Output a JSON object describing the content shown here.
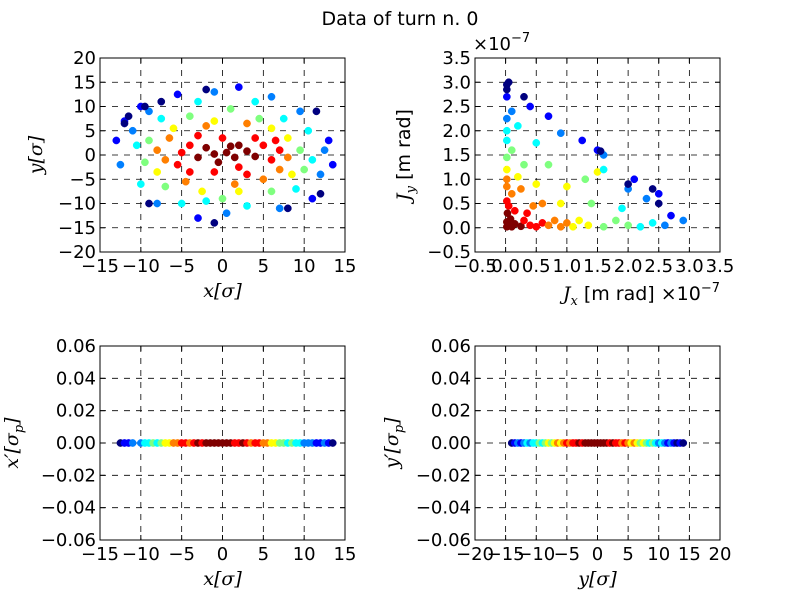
{
  "figure": {
    "title": "Data of turn n.  0"
  },
  "colormap": [
    "#00007f",
    "#0000ff",
    "#007fff",
    "#00ffff",
    "#7fff7f",
    "#ffff00",
    "#ff7f00",
    "#ff0000",
    "#7f0000"
  ],
  "chart_data": [
    {
      "type": "scatter",
      "id": "xy",
      "xlabel": "x[σ]",
      "ylabel": "y[σ]",
      "xlim": [
        -15,
        15
      ],
      "ylim": [
        -20,
        20
      ],
      "xticks": [
        -15,
        -10,
        -5,
        0,
        5,
        10,
        15
      ],
      "yticks": [
        -20,
        -15,
        -10,
        -5,
        0,
        5,
        10,
        15,
        20
      ],
      "xticklabels": [
        "−15",
        "−10",
        "−5",
        "0",
        "5",
        "10",
        "15"
      ],
      "yticklabels": [
        "−20",
        "−15",
        "−10",
        "−5",
        "0",
        "5",
        "10",
        "15",
        "20"
      ],
      "grid": true,
      "description_of_colors": "jet colormap, dark red at core, dark blue at outer ring",
      "points": [
        {
          "x": 0.5,
          "y": 0.5,
          "c": 8
        },
        {
          "x": -1,
          "y": 0.2,
          "c": 8
        },
        {
          "x": 1.5,
          "y": -0.5,
          "c": 8
        },
        {
          "x": -2,
          "y": 1.5,
          "c": 8
        },
        {
          "x": 3,
          "y": 0.8,
          "c": 8
        },
        {
          "x": 2,
          "y": 2,
          "c": 8
        },
        {
          "x": -0.5,
          "y": -1.5,
          "c": 8
        },
        {
          "x": 4,
          "y": -0.3,
          "c": 8
        },
        {
          "x": -3,
          "y": -0.5,
          "c": 8
        },
        {
          "x": 1,
          "y": 1.8,
          "c": 8
        },
        {
          "x": -4,
          "y": 2,
          "c": 7
        },
        {
          "x": 5,
          "y": 2,
          "c": 7
        },
        {
          "x": -5,
          "y": 0.5,
          "c": 7
        },
        {
          "x": 6,
          "y": -1,
          "c": 7
        },
        {
          "x": -5.5,
          "y": -2,
          "c": 7
        },
        {
          "x": 2,
          "y": -2.5,
          "c": 7
        },
        {
          "x": 0,
          "y": 3.5,
          "c": 7
        },
        {
          "x": -1,
          "y": -3.5,
          "c": 7
        },
        {
          "x": 4,
          "y": 3.5,
          "c": 7
        },
        {
          "x": -3,
          "y": 4,
          "c": 7
        },
        {
          "x": 3,
          "y": -4,
          "c": 7
        },
        {
          "x": -4,
          "y": -3.5,
          "c": 7
        },
        {
          "x": 7,
          "y": 1,
          "c": 7
        },
        {
          "x": 6.5,
          "y": 3,
          "c": 7
        },
        {
          "x": -6.5,
          "y": 3.5,
          "c": 6
        },
        {
          "x": 7,
          "y": -3,
          "c": 6
        },
        {
          "x": -7,
          "y": -1,
          "c": 6
        },
        {
          "x": 5,
          "y": -5,
          "c": 6
        },
        {
          "x": -2,
          "y": 6,
          "c": 6
        },
        {
          "x": 1.5,
          "y": -6,
          "c": 6
        },
        {
          "x": 3,
          "y": 6.5,
          "c": 6
        },
        {
          "x": -4.5,
          "y": -5.5,
          "c": 6
        },
        {
          "x": 8,
          "y": -0.5,
          "c": 6
        },
        {
          "x": -8,
          "y": 1,
          "c": 6
        },
        {
          "x": -1,
          "y": 7,
          "c": 5
        },
        {
          "x": 6,
          "y": 5.5,
          "c": 5
        },
        {
          "x": -6,
          "y": 5.5,
          "c": 5
        },
        {
          "x": 8,
          "y": 3.5,
          "c": 5
        },
        {
          "x": -8,
          "y": -3.5,
          "c": 5
        },
        {
          "x": 2,
          "y": -7.5,
          "c": 5
        },
        {
          "x": -2.5,
          "y": -7.5,
          "c": 5
        },
        {
          "x": 8.5,
          "y": -4,
          "c": 5
        },
        {
          "x": 4.5,
          "y": 7.5,
          "c": 4
        },
        {
          "x": -4,
          "y": 8,
          "c": 4
        },
        {
          "x": -9,
          "y": 3,
          "c": 4
        },
        {
          "x": 9.5,
          "y": 1,
          "c": 4
        },
        {
          "x": 6,
          "y": -7.5,
          "c": 4
        },
        {
          "x": -7,
          "y": -6.5,
          "c": 4
        },
        {
          "x": 0,
          "y": -9,
          "c": 4
        },
        {
          "x": 1,
          "y": 9.5,
          "c": 4
        },
        {
          "x": -9.5,
          "y": -1.5,
          "c": 4
        },
        {
          "x": 10,
          "y": -3,
          "c": 4
        },
        {
          "x": -2,
          "y": -9.5,
          "c": 3
        },
        {
          "x": 7.5,
          "y": 7.5,
          "c": 3
        },
        {
          "x": -7.5,
          "y": 7.5,
          "c": 3
        },
        {
          "x": 9,
          "y": -7,
          "c": 3
        },
        {
          "x": -10.5,
          "y": 2,
          "c": 3
        },
        {
          "x": 11,
          "y": -1,
          "c": 3
        },
        {
          "x": 3,
          "y": -10.5,
          "c": 3
        },
        {
          "x": -5,
          "y": -10,
          "c": 3
        },
        {
          "x": -3,
          "y": 11,
          "c": 3
        },
        {
          "x": 4,
          "y": 11,
          "c": 3
        },
        {
          "x": -10,
          "y": -6,
          "c": 3
        },
        {
          "x": 10.5,
          "y": 5,
          "c": 3
        },
        {
          "x": -11,
          "y": 5,
          "c": 2
        },
        {
          "x": 12,
          "y": -4,
          "c": 2
        },
        {
          "x": -9,
          "y": 9,
          "c": 2
        },
        {
          "x": 9.5,
          "y": 9,
          "c": 2
        },
        {
          "x": -8,
          "y": -10,
          "c": 2
        },
        {
          "x": 7,
          "y": -11,
          "c": 2
        },
        {
          "x": 0.5,
          "y": -12,
          "c": 2
        },
        {
          "x": -1,
          "y": 13,
          "c": 2
        },
        {
          "x": 12.5,
          "y": 1,
          "c": 2
        },
        {
          "x": -12.5,
          "y": -2,
          "c": 2
        },
        {
          "x": 6,
          "y": 12,
          "c": 2
        },
        {
          "x": -5.5,
          "y": 12.5,
          "c": 1
        },
        {
          "x": 13,
          "y": 3,
          "c": 1
        },
        {
          "x": -12,
          "y": 7,
          "c": 1
        },
        {
          "x": 11,
          "y": -9,
          "c": 1
        },
        {
          "x": -10,
          "y": 10,
          "c": 1
        },
        {
          "x": -3,
          "y": -13,
          "c": 1
        },
        {
          "x": 2,
          "y": 14,
          "c": 1
        },
        {
          "x": 13.5,
          "y": -2,
          "c": 1
        },
        {
          "x": -13,
          "y": 3,
          "c": 1
        },
        {
          "x": -11.5,
          "y": 8,
          "c": 0
        },
        {
          "x": -12,
          "y": 6.5,
          "c": 0
        },
        {
          "x": -9.5,
          "y": 10,
          "c": 0
        },
        {
          "x": -7.5,
          "y": 11,
          "c": 0
        },
        {
          "x": -2,
          "y": 13.5,
          "c": 0
        },
        {
          "x": 12,
          "y": -8,
          "c": 0
        },
        {
          "x": 8,
          "y": -11,
          "c": 0
        },
        {
          "x": -1,
          "y": -14,
          "c": 0
        },
        {
          "x": 11.5,
          "y": 9,
          "c": 0
        },
        {
          "x": -9,
          "y": -10,
          "c": 0
        }
      ]
    },
    {
      "type": "scatter",
      "id": "JxJy",
      "xlabel_var": "J",
      "xlabel_sub": "x",
      "xlabel_unit": " [m rad]",
      "ylabel_var": "J",
      "ylabel_sub": "y",
      "ylabel_unit": " [m rad]",
      "x_offset_text": "×10",
      "x_offset_exp": "−7",
      "y_offset_text": "×10",
      "y_offset_exp": "−7",
      "xlim": [
        -0.5,
        3.5
      ],
      "ylim": [
        -0.5,
        3.5
      ],
      "xticks": [
        -0.5,
        0.0,
        0.5,
        1.0,
        1.5,
        2.0,
        2.5,
        3.0,
        3.5
      ],
      "yticks": [
        -0.5,
        0.0,
        0.5,
        1.0,
        1.5,
        2.0,
        2.5,
        3.0,
        3.5
      ],
      "xticklabels": [
        "−0.5",
        "0.0",
        "0.5",
        "1.0",
        "1.5",
        "2.0",
        "2.5",
        "3.0",
        "3.5"
      ],
      "yticklabels": [
        "−0.5",
        "0.0",
        "0.5",
        "1.0",
        "1.5",
        "2.0",
        "2.5",
        "3.0",
        "3.5"
      ],
      "grid": true,
      "points": [
        {
          "x": 0.02,
          "y": 0.02,
          "c": 8
        },
        {
          "x": 0.05,
          "y": 0.05,
          "c": 8
        },
        {
          "x": 0.1,
          "y": 0.02,
          "c": 8
        },
        {
          "x": 0.02,
          "y": 0.12,
          "c": 8
        },
        {
          "x": 0.15,
          "y": 0.08,
          "c": 8
        },
        {
          "x": 0.08,
          "y": 0.18,
          "c": 8
        },
        {
          "x": 0.25,
          "y": 0.03,
          "c": 8
        },
        {
          "x": 0.03,
          "y": 0.3,
          "c": 8
        },
        {
          "x": 0.3,
          "y": 0.15,
          "c": 7
        },
        {
          "x": 0.15,
          "y": 0.35,
          "c": 7
        },
        {
          "x": 0.4,
          "y": 0.05,
          "c": 7
        },
        {
          "x": 0.05,
          "y": 0.45,
          "c": 7
        },
        {
          "x": 0.5,
          "y": 0.02,
          "c": 7
        },
        {
          "x": 0.02,
          "y": 0.55,
          "c": 7
        },
        {
          "x": 0.35,
          "y": 0.3,
          "c": 7
        },
        {
          "x": 0.6,
          "y": 0.1,
          "c": 7
        },
        {
          "x": 0.7,
          "y": 0.05,
          "c": 6
        },
        {
          "x": 0.1,
          "y": 0.7,
          "c": 6
        },
        {
          "x": 0.45,
          "y": 0.45,
          "c": 6
        },
        {
          "x": 0.8,
          "y": 0.15,
          "c": 6
        },
        {
          "x": 0.02,
          "y": 0.85,
          "c": 6
        },
        {
          "x": 0.9,
          "y": 0.02,
          "c": 6
        },
        {
          "x": 0.25,
          "y": 0.8,
          "c": 6
        },
        {
          "x": 1.0,
          "y": 0.1,
          "c": 6
        },
        {
          "x": 0.6,
          "y": 0.5,
          "c": 6
        },
        {
          "x": 0.02,
          "y": 1.0,
          "c": 6
        },
        {
          "x": 1.1,
          "y": 0.02,
          "c": 5
        },
        {
          "x": 0.2,
          "y": 1.05,
          "c": 5
        },
        {
          "x": 0.9,
          "y": 0.5,
          "c": 5
        },
        {
          "x": 1.2,
          "y": 0.15,
          "c": 5
        },
        {
          "x": 0.5,
          "y": 0.9,
          "c": 5
        },
        {
          "x": 0.02,
          "y": 1.2,
          "c": 5
        },
        {
          "x": 1.35,
          "y": 0.05,
          "c": 5
        },
        {
          "x": 1.5,
          "y": 1.15,
          "c": 5
        },
        {
          "x": 1.0,
          "y": 0.85,
          "c": 5
        },
        {
          "x": 0.3,
          "y": 1.3,
          "c": 4
        },
        {
          "x": 1.4,
          "y": 0.5,
          "c": 4
        },
        {
          "x": 1.6,
          "y": 0.02,
          "c": 4
        },
        {
          "x": 0.02,
          "y": 1.45,
          "c": 4
        },
        {
          "x": 0.7,
          "y": 1.3,
          "c": 4
        },
        {
          "x": 1.8,
          "y": 0.15,
          "c": 4
        },
        {
          "x": 0.1,
          "y": 1.6,
          "c": 4
        },
        {
          "x": 1.3,
          "y": 1.0,
          "c": 4
        },
        {
          "x": 2.0,
          "y": 0.05,
          "c": 4
        },
        {
          "x": 0.02,
          "y": 1.8,
          "c": 3
        },
        {
          "x": 1.9,
          "y": 0.4,
          "c": 3
        },
        {
          "x": 0.5,
          "y": 1.75,
          "c": 3
        },
        {
          "x": 2.2,
          "y": 0.02,
          "c": 3
        },
        {
          "x": 1.6,
          "y": 1.2,
          "c": 3
        },
        {
          "x": 0.02,
          "y": 2.0,
          "c": 3
        },
        {
          "x": 2.4,
          "y": 0.1,
          "c": 3
        },
        {
          "x": 0.2,
          "y": 2.1,
          "c": 3
        },
        {
          "x": 2.0,
          "y": 0.8,
          "c": 2
        },
        {
          "x": 0.02,
          "y": 2.25,
          "c": 2
        },
        {
          "x": 2.6,
          "y": 0.05,
          "c": 2
        },
        {
          "x": 0.9,
          "y": 1.95,
          "c": 2
        },
        {
          "x": 0.1,
          "y": 2.4,
          "c": 2
        },
        {
          "x": 2.3,
          "y": 0.6,
          "c": 2
        },
        {
          "x": 2.9,
          "y": 0.15,
          "c": 2
        },
        {
          "x": 1.6,
          "y": 1.5,
          "c": 2
        },
        {
          "x": 0.4,
          "y": 2.5,
          "c": 1
        },
        {
          "x": 2.7,
          "y": 0.25,
          "c": 1
        },
        {
          "x": 0.02,
          "y": 2.7,
          "c": 1
        },
        {
          "x": 2.5,
          "y": 0.7,
          "c": 1
        },
        {
          "x": 1.5,
          "y": 1.6,
          "c": 1
        },
        {
          "x": 0.7,
          "y": 2.3,
          "c": 1
        },
        {
          "x": 1.25,
          "y": 1.8,
          "c": 1
        },
        {
          "x": 2.1,
          "y": 1.0,
          "c": 1
        },
        {
          "x": 0.02,
          "y": 2.95,
          "c": 0
        },
        {
          "x": 0.05,
          "y": 3.0,
          "c": 0
        },
        {
          "x": 0.02,
          "y": 2.85,
          "c": 0
        },
        {
          "x": 0.3,
          "y": 2.7,
          "c": 0
        },
        {
          "x": 2.0,
          "y": 0.9,
          "c": 0
        },
        {
          "x": 2.5,
          "y": 0.5,
          "c": 0
        },
        {
          "x": 1.55,
          "y": 1.58,
          "c": 0
        },
        {
          "x": 2.4,
          "y": 0.8,
          "c": 0
        }
      ]
    },
    {
      "type": "scatter",
      "id": "xxp",
      "xlabel": "x[σ]",
      "ylabel_main": "x′[σ",
      "ylabel_sub": "p",
      "ylabel_close": "]",
      "xlim": [
        -15,
        15
      ],
      "ylim": [
        -0.06,
        0.06
      ],
      "xticks": [
        -15,
        -10,
        -5,
        0,
        5,
        10,
        15
      ],
      "yticks": [
        -0.06,
        -0.04,
        -0.02,
        0.0,
        0.02,
        0.04,
        0.06
      ],
      "xticklabels": [
        "−15",
        "−10",
        "−5",
        "0",
        "5",
        "10",
        "15"
      ],
      "yticklabels": [
        "−0.06",
        "−0.04",
        "−0.02",
        "0.00",
        "0.02",
        "0.04",
        "0.06"
      ],
      "grid": true,
      "y_constant": 0.0,
      "points_x": [
        -12.5,
        -12,
        -11.5,
        -11,
        -10,
        -9.5,
        -9,
        -8.5,
        -8,
        -7.5,
        -7,
        -6.5,
        -6,
        -5.5,
        -5,
        -4.5,
        -4,
        -3.5,
        -3,
        -2.5,
        -2,
        -1.5,
        -1,
        -0.5,
        0,
        0.5,
        1,
        1.5,
        2,
        2.5,
        3,
        3.5,
        4,
        4.5,
        5,
        5.5,
        6,
        6.5,
        7,
        7.5,
        8,
        8.5,
        9,
        9.5,
        10,
        10.5,
        11,
        11.5,
        12,
        12.5,
        13,
        13.5
      ],
      "points_c": [
        0,
        1,
        1,
        2,
        2,
        3,
        3,
        4,
        3,
        4,
        5,
        5,
        6,
        6,
        7,
        7,
        6,
        7,
        8,
        7,
        8,
        8,
        8,
        8,
        8,
        8,
        8,
        7,
        7,
        8,
        7,
        6,
        7,
        7,
        6,
        6,
        5,
        5,
        4,
        4,
        3,
        4,
        3,
        3,
        2,
        2,
        2,
        1,
        1,
        2,
        1,
        0
      ]
    },
    {
      "type": "scatter",
      "id": "yyp",
      "xlabel": "y[σ]",
      "ylabel_main": "y′[σ",
      "ylabel_sub": "p",
      "ylabel_close": "]",
      "xlim": [
        -20,
        20
      ],
      "ylim": [
        -0.06,
        0.06
      ],
      "xticks": [
        -20,
        -15,
        -10,
        -5,
        0,
        5,
        10,
        15,
        20
      ],
      "yticks": [
        -0.06,
        -0.04,
        -0.02,
        0.0,
        0.02,
        0.04,
        0.06
      ],
      "xticklabels": [
        "−20",
        "−15",
        "−10",
        "−5",
        "0",
        "5",
        "10",
        "15",
        "20"
      ],
      "yticklabels": [
        "−0.06",
        "−0.04",
        "−0.02",
        "0.00",
        "0.02",
        "0.04",
        "0.06"
      ],
      "grid": true,
      "y_constant": 0.0,
      "points_x": [
        -14,
        -13.5,
        -13,
        -12.5,
        -12,
        -11.5,
        -11,
        -10.5,
        -10,
        -9.5,
        -9,
        -8.5,
        -8,
        -7.5,
        -7,
        -6.5,
        -6,
        -5.5,
        -5,
        -4.5,
        -4,
        -3.5,
        -3,
        -2.5,
        -2,
        -1.5,
        -1,
        -0.5,
        0,
        0.5,
        1,
        1.5,
        2,
        2.5,
        3,
        3.5,
        4,
        4.5,
        5,
        5.5,
        6,
        6.5,
        7,
        7.5,
        8,
        8.5,
        9,
        9.5,
        10,
        10.5,
        11,
        11.5,
        12,
        12.5,
        13,
        13.5,
        14
      ],
      "points_c": [
        0,
        1,
        2,
        1,
        2,
        3,
        2,
        3,
        3,
        4,
        3,
        4,
        5,
        4,
        5,
        6,
        5,
        6,
        7,
        6,
        7,
        7,
        8,
        7,
        8,
        8,
        8,
        8,
        8,
        8,
        8,
        8,
        7,
        8,
        7,
        7,
        6,
        7,
        6,
        5,
        6,
        5,
        4,
        5,
        4,
        3,
        4,
        3,
        2,
        3,
        2,
        1,
        2,
        1,
        0,
        1,
        0
      ]
    }
  ]
}
